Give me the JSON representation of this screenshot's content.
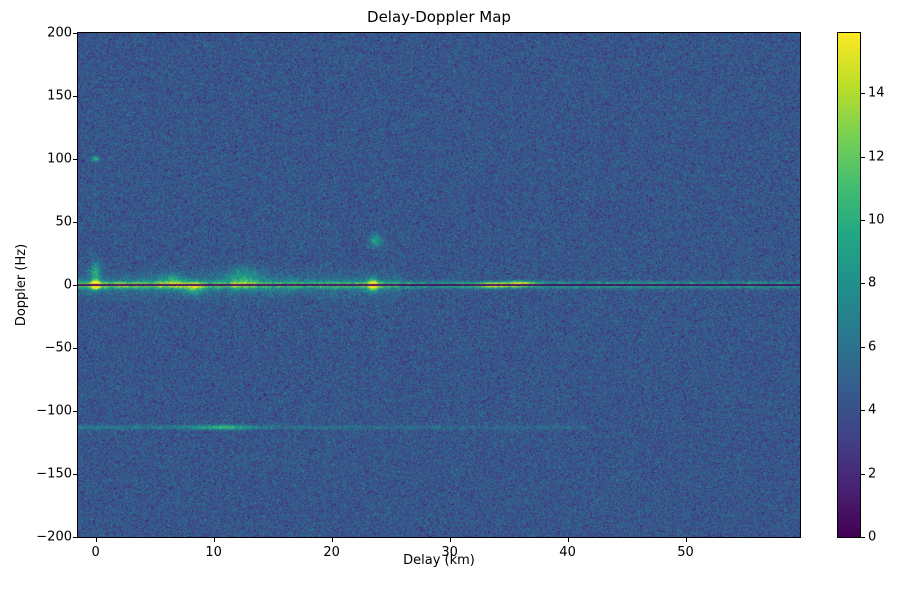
{
  "chart_data": {
    "type": "heatmap",
    "title": "Delay-Doppler Map",
    "xlabel": "Delay (km)",
    "ylabel": "Doppler (Hz)",
    "xlim": [
      -1.5,
      59.7
    ],
    "ylim": [
      -200,
      200
    ],
    "x_ticks": [
      0,
      10,
      20,
      30,
      40,
      50
    ],
    "y_ticks": [
      -200,
      -150,
      -100,
      -50,
      0,
      50,
      100,
      150,
      200
    ],
    "colorbar": {
      "vmin": 0,
      "vmax": 15.9,
      "ticks": [
        0,
        2,
        4,
        6,
        8,
        10,
        12,
        14
      ],
      "position": "right"
    },
    "colormap": "viridis",
    "colormap_stops": [
      [
        0.0,
        [
          68,
          1,
          84
        ]
      ],
      [
        0.1,
        [
          72,
          35,
          116
        ]
      ],
      [
        0.2,
        [
          64,
          67,
          135
        ]
      ],
      [
        0.3,
        [
          52,
          94,
          141
        ]
      ],
      [
        0.4,
        [
          41,
          120,
          142
        ]
      ],
      [
        0.5,
        [
          32,
          144,
          140
        ]
      ],
      [
        0.6,
        [
          34,
          167,
          132
        ]
      ],
      [
        0.7,
        [
          68,
          190,
          112
        ]
      ],
      [
        0.8,
        [
          121,
          209,
          81
        ]
      ],
      [
        0.9,
        [
          189,
          222,
          38
        ]
      ],
      [
        1.0,
        [
          253,
          231,
          37
        ]
      ]
    ],
    "grid": false,
    "noise": {
      "mean": 4.3,
      "std": 1.15,
      "seed": 42
    },
    "zero_doppler_notch": {
      "doppler_hz": 0,
      "halfwidth_hz": 0.7,
      "value": 0.5
    },
    "clutter_ridge": {
      "doppler_hz": 0,
      "sigma_hz": 2.5,
      "base_amp": 4.4,
      "extra_amp": 3.5,
      "decay_km": 28,
      "wide_sigma_hz": 9,
      "wide_amp": 1.7,
      "wide_max_delay_km": 26
    },
    "interference_line": {
      "doppler_hz": -113,
      "sigma_hz": 1.6,
      "amp": 2.4,
      "min_delay_km": -1.5,
      "max_delay_km": 42,
      "decay_km": 60
    },
    "hotspots": [
      {
        "delay_km": 0.0,
        "doppler_hz": 0,
        "sigma_km": 0.35,
        "sigma_hz": 3.5,
        "amp": 13.0
      },
      {
        "delay_km": 0.0,
        "doppler_hz": 10,
        "sigma_km": 0.4,
        "sigma_hz": 9.0,
        "amp": 5.0
      },
      {
        "delay_km": 0.0,
        "doppler_hz": 100,
        "sigma_km": 0.35,
        "sigma_hz": 2.0,
        "amp": 6.0
      },
      {
        "delay_km": 6.5,
        "doppler_hz": 3,
        "sigma_km": 1.2,
        "sigma_hz": 6.0,
        "amp": 4.0
      },
      {
        "delay_km": 8.3,
        "doppler_hz": -3,
        "sigma_km": 0.8,
        "sigma_hz": 5.0,
        "amp": 4.5
      },
      {
        "delay_km": 12.5,
        "doppler_hz": 5,
        "sigma_km": 1.5,
        "sigma_hz": 8.0,
        "amp": 4.0
      },
      {
        "delay_km": 23.5,
        "doppler_hz": 0,
        "sigma_km": 0.4,
        "sigma_hz": 5.0,
        "amp": 10.0
      },
      {
        "delay_km": 23.7,
        "doppler_hz": 35,
        "sigma_km": 0.5,
        "sigma_hz": 5.0,
        "amp": 4.5
      },
      {
        "delay_km": 33.8,
        "doppler_hz": 0,
        "sigma_km": 1.6,
        "sigma_hz": 2.2,
        "amp": 8.0
      },
      {
        "delay_km": 36.2,
        "doppler_hz": 1,
        "sigma_km": 1.2,
        "sigma_hz": 2.2,
        "amp": 7.0
      },
      {
        "delay_km": 10.8,
        "doppler_hz": -113,
        "sigma_km": 2.2,
        "sigma_hz": 2.0,
        "amp": 4.5
      }
    ]
  },
  "colors": {
    "background": "#ffffff",
    "text": "#000000",
    "spine": "#000000"
  }
}
